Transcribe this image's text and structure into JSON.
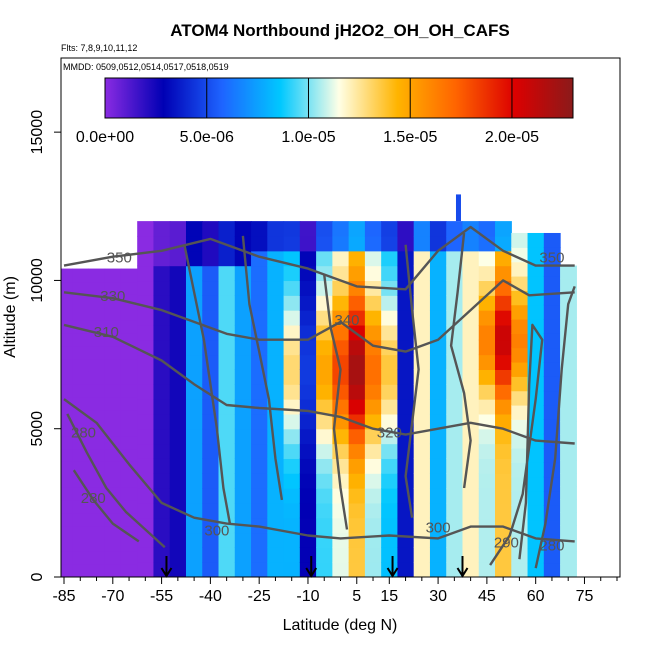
{
  "chart_data": {
    "type": "heatmap",
    "title": "ATOM4 Northbound jH2O2_OH_OH_CAFS",
    "subtitle_flights": "Flts: 7,8,9,10,11,12",
    "subtitle_dates": "MMDD: 0509,0512,0514,0517,0518,0519",
    "xlabel": "Latitude (deg N)",
    "ylabel": "Altitude (m)",
    "xlim": [
      -85,
      85
    ],
    "ylim": [
      0,
      17500
    ],
    "x_ticks": [
      -85,
      -70,
      -55,
      -40,
      -25,
      -10,
      5,
      15,
      30,
      45,
      60,
      75
    ],
    "x_tick_labels": [
      "-85",
      "-70",
      "-55",
      "-40",
      "-25",
      "-10",
      "5",
      "15",
      "30",
      "45",
      "60",
      "75"
    ],
    "y_ticks": [
      0,
      5000,
      10000,
      15000
    ],
    "y_tick_labels": [
      "0",
      "5000",
      "10000",
      "15000"
    ],
    "colorbar": {
      "min": 0,
      "max": 2.3e-05,
      "ticks": [
        0,
        5e-06,
        1e-05,
        1.5e-05,
        2e-05
      ],
      "tick_labels": [
        "0.0e+00",
        "5.0e-06",
        "1.0e-05",
        "1.5e-05",
        "2.0e-05"
      ],
      "colors": [
        "#8a2be2",
        "#0000b4",
        "#1e64ff",
        "#00c8ff",
        "#ffffe6",
        "#ffb400",
        "#ff6400",
        "#dc0000",
        "#8b1a1a"
      ]
    },
    "lat_columns": [
      {
        "lat": -85,
        "v": 0.0
      },
      {
        "lat": -80,
        "v": 0.0
      },
      {
        "lat": -75,
        "v": 0.0
      },
      {
        "lat": -70,
        "v": 0.0
      },
      {
        "lat": -65,
        "v": 0.0
      },
      {
        "lat": -60,
        "v": 0.0
      },
      {
        "lat": -55,
        "v": 2e-06
      },
      {
        "lat": -50,
        "v": 2.5e-06
      },
      {
        "lat": -45,
        "v": 7.5e-06
      },
      {
        "lat": -40,
        "v": 5.5e-06
      },
      {
        "lat": -35,
        "v": 9.5e-06
      },
      {
        "lat": -30,
        "v": 7.5e-06
      },
      {
        "lat": -25,
        "v": 6e-06
      },
      {
        "lat": -20,
        "v": 8e-06
      },
      {
        "lat": -15,
        "v": 1e-05
      },
      {
        "lat": -10,
        "v": 3.5e-06
      },
      {
        "lat": -5,
        "v": 1.15e-05
      },
      {
        "lat": 0,
        "v": 1.4e-05
      },
      {
        "lat": 5,
        "v": 1.7e-05
      },
      {
        "lat": 10,
        "v": 1.3e-05
      },
      {
        "lat": 15,
        "v": 1.05e-05
      },
      {
        "lat": 20,
        "v": 3.5e-06
      },
      {
        "lat": 25,
        "v": 1.2e-05
      },
      {
        "lat": 30,
        "v": 8e-06
      },
      {
        "lat": 35,
        "v": 1.05e-05
      },
      {
        "lat": 40,
        "v": 1.2e-05
      },
      {
        "lat": 45,
        "v": 1.25e-05
      },
      {
        "lat": 50,
        "v": 1.6e-05
      },
      {
        "lat": 55,
        "v": 1.25e-05
      },
      {
        "lat": 60,
        "v": 8.5e-06
      },
      {
        "lat": 65,
        "v": 5.5e-06
      },
      {
        "lat": 70,
        "v": 1.05e-05
      }
    ],
    "contour_labels": [
      {
        "text": "350",
        "lat": -68,
        "alt": 10600
      },
      {
        "text": "330",
        "lat": -70,
        "alt": 9300
      },
      {
        "text": "310",
        "lat": -72,
        "alt": 8100
      },
      {
        "text": "340",
        "lat": 2,
        "alt": 8500
      },
      {
        "text": "320",
        "lat": 15,
        "alt": 4700
      },
      {
        "text": "300",
        "lat": -38,
        "alt": 1400
      },
      {
        "text": "300",
        "lat": 30,
        "alt": 1500
      },
      {
        "text": "290",
        "lat": 51,
        "alt": 1000
      },
      {
        "text": "280",
        "lat": 65,
        "alt": 900
      },
      {
        "text": "350",
        "lat": 65,
        "alt": 10600
      },
      {
        "text": "280",
        "lat": -79,
        "alt": 4700
      },
      {
        "text": "280",
        "lat": -76,
        "alt": 2500
      }
    ],
    "arrows_lat": [
      -53.5,
      -9,
      16,
      37.5
    ]
  }
}
